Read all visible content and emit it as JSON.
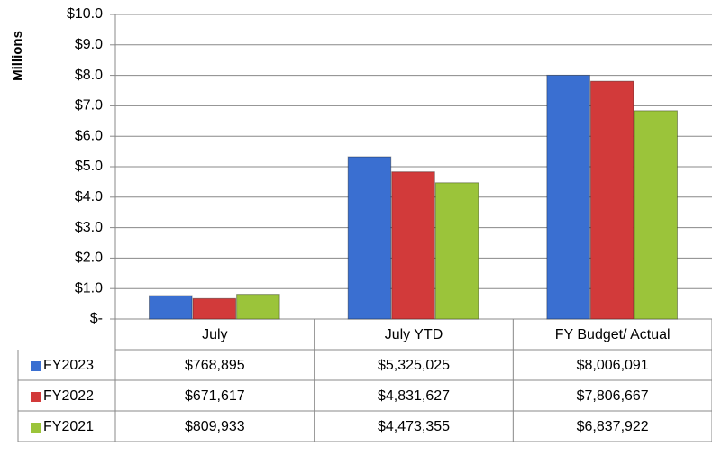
{
  "chart_data": {
    "type": "bar",
    "y_axis_label": "Millions",
    "categories": [
      "July",
      "July YTD",
      "FY Budget/ Actual"
    ],
    "series": [
      {
        "name": "FY2023",
        "color": "#3a6fd1",
        "values": [
          0.768895,
          5.325025,
          8.006091
        ],
        "value_labels": [
          "$768,895",
          "$5,325,025",
          "$8,006,091"
        ]
      },
      {
        "name": "FY2022",
        "color": "#d23a3a",
        "values": [
          0.671617,
          4.831627,
          7.806667
        ],
        "value_labels": [
          "$671,617",
          "$4,831,627",
          "$7,806,667"
        ]
      },
      {
        "name": "FY2021",
        "color": "#9bc43a",
        "values": [
          0.809933,
          4.473355,
          6.837922
        ],
        "value_labels": [
          "$809,933",
          "$4,473,355",
          "$6,837,922"
        ]
      }
    ],
    "ylim": [
      0,
      10
    ],
    "yticks": [
      {
        "value": 0,
        "label": "$-"
      },
      {
        "value": 1,
        "label": "$1.0"
      },
      {
        "value": 2,
        "label": "$2.0"
      },
      {
        "value": 3,
        "label": "$3.0"
      },
      {
        "value": 4,
        "label": "$4.0"
      },
      {
        "value": 5,
        "label": "$5.0"
      },
      {
        "value": 6,
        "label": "$6.0"
      },
      {
        "value": 7,
        "label": "$7.0"
      },
      {
        "value": 8,
        "label": "$8.0"
      },
      {
        "value": 9,
        "label": "$9.0"
      },
      {
        "value": 10,
        "label": "$10.0"
      }
    ],
    "grid": true,
    "data_table": true
  }
}
